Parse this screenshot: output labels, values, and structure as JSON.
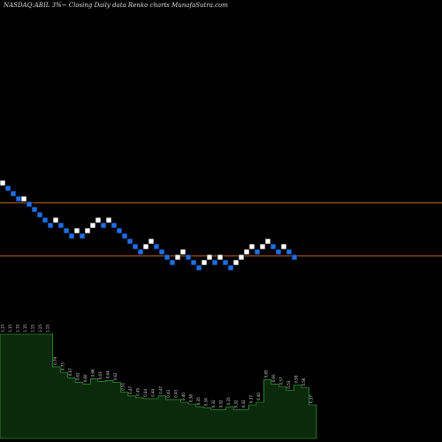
{
  "chart_data": {
    "type": "renko",
    "title": "NASDAQ:ABIL  3%~  Closing Daily data  Renko  charts MunafaSutra.com",
    "colors": {
      "background": "#000000",
      "up_brick": "#ffffff",
      "down_brick": "#1e6fe6",
      "reference_line": "#b45f1e",
      "volume_fill": "#0b2a0b",
      "volume_stroke": "#3cb43c"
    },
    "reference_lines": [
      229,
      289
    ],
    "bricks": [
      {
        "top": 204,
        "dir": "up"
      },
      {
        "top": 210,
        "dir": "down"
      },
      {
        "top": 216,
        "dir": "down"
      },
      {
        "top": 222,
        "dir": "down"
      },
      {
        "top": 222,
        "dir": "up"
      },
      {
        "top": 228,
        "dir": "down"
      },
      {
        "top": 234,
        "dir": "down"
      },
      {
        "top": 240,
        "dir": "down"
      },
      {
        "top": 246,
        "dir": "down"
      },
      {
        "top": 252,
        "dir": "down"
      },
      {
        "top": 246,
        "dir": "up"
      },
      {
        "top": 252,
        "dir": "down"
      },
      {
        "top": 258,
        "dir": "down"
      },
      {
        "top": 264,
        "dir": "down"
      },
      {
        "top": 258,
        "dir": "up"
      },
      {
        "top": 264,
        "dir": "down"
      },
      {
        "top": 258,
        "dir": "up"
      },
      {
        "top": 252,
        "dir": "up"
      },
      {
        "top": 246,
        "dir": "up"
      },
      {
        "top": 252,
        "dir": "down"
      },
      {
        "top": 246,
        "dir": "up"
      },
      {
        "top": 252,
        "dir": "down"
      },
      {
        "top": 258,
        "dir": "down"
      },
      {
        "top": 264,
        "dir": "down"
      },
      {
        "top": 270,
        "dir": "down"
      },
      {
        "top": 276,
        "dir": "down"
      },
      {
        "top": 282,
        "dir": "down"
      },
      {
        "top": 276,
        "dir": "up"
      },
      {
        "top": 270,
        "dir": "up"
      },
      {
        "top": 276,
        "dir": "down"
      },
      {
        "top": 282,
        "dir": "down"
      },
      {
        "top": 288,
        "dir": "down"
      },
      {
        "top": 294,
        "dir": "down"
      },
      {
        "top": 288,
        "dir": "up"
      },
      {
        "top": 282,
        "dir": "up"
      },
      {
        "top": 288,
        "dir": "down"
      },
      {
        "top": 294,
        "dir": "down"
      },
      {
        "top": 300,
        "dir": "down"
      },
      {
        "top": 294,
        "dir": "up"
      },
      {
        "top": 288,
        "dir": "up"
      },
      {
        "top": 294,
        "dir": "down"
      },
      {
        "top": 288,
        "dir": "up"
      },
      {
        "top": 294,
        "dir": "down"
      },
      {
        "top": 300,
        "dir": "down"
      },
      {
        "top": 294,
        "dir": "up"
      },
      {
        "top": 288,
        "dir": "up"
      },
      {
        "top": 282,
        "dir": "up"
      },
      {
        "top": 276,
        "dir": "up"
      },
      {
        "top": 282,
        "dir": "down"
      },
      {
        "top": 276,
        "dir": "up"
      },
      {
        "top": 270,
        "dir": "up"
      },
      {
        "top": 276,
        "dir": "down"
      },
      {
        "top": 282,
        "dir": "down"
      },
      {
        "top": 276,
        "dir": "up"
      },
      {
        "top": 282,
        "dir": "down"
      },
      {
        "top": 288,
        "dir": "down"
      }
    ],
    "volume_labels": [
      "1.15",
      "1.15",
      "1.15",
      "1.15",
      "1.15",
      "1.15",
      "1.15",
      "0.79",
      "0.73",
      "0.67",
      "0.62",
      "0.60",
      "0.66",
      "0.63",
      "0.64",
      "0.62",
      "0.51",
      "0.47",
      "0.45",
      "0.44",
      "0.44",
      "0.47",
      "0.43",
      "0.43",
      "0.40",
      "0.38",
      "0.35",
      "0.34",
      "0.32",
      "0.32",
      "0.35",
      "0.32",
      "0.32",
      "0.37",
      "0.40",
      "0.65",
      "0.60",
      "0.57",
      "0.53",
      "0.59",
      "0.56",
      "0.37"
    ]
  }
}
